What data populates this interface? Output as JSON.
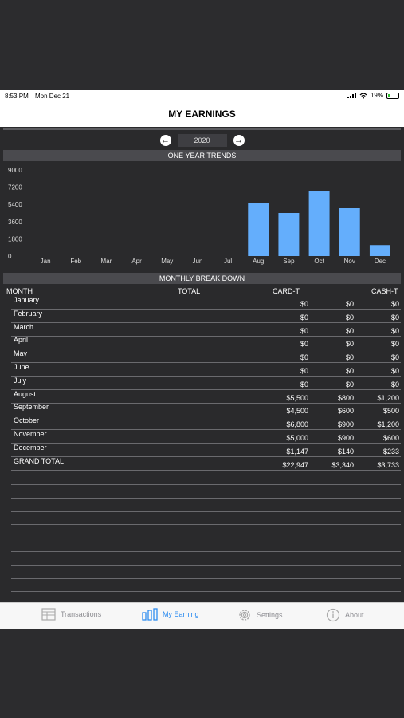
{
  "status": {
    "time": "8:53 PM",
    "date": "Mon Dec 21",
    "battery": "19%"
  },
  "nav": {
    "title": "MY EARNINGS"
  },
  "year_selector": {
    "year": "2020",
    "prev_icon": "arrow-left-circle-icon",
    "next_icon": "arrow-right-circle-icon"
  },
  "trends": {
    "title": "ONE YEAR TRENDS"
  },
  "chart_data": {
    "type": "bar",
    "categories": [
      "Jan",
      "Feb",
      "Mar",
      "Apr",
      "May",
      "Jun",
      "Jul",
      "Aug",
      "Sep",
      "Oct",
      "Nov",
      "Dec"
    ],
    "values": [
      0,
      0,
      0,
      0,
      0,
      0,
      0,
      5500,
      4500,
      6800,
      5000,
      1147
    ],
    "y_ticks": [
      "9000",
      "7200",
      "5400",
      "3600",
      "1800",
      "0"
    ],
    "ylim": [
      0,
      9000
    ],
    "bar_color": "#64aefc",
    "grid": false
  },
  "breakdown": {
    "title": "MONTHLY BREAK DOWN",
    "headers": {
      "month": "MONTH",
      "total": "TOTAL",
      "card": "CARD-T",
      "cash": "CASH-T"
    },
    "rows": [
      {
        "month": "January",
        "total": "$0",
        "card": "$0",
        "cash": "$0"
      },
      {
        "month": "February",
        "total": "$0",
        "card": "$0",
        "cash": "$0"
      },
      {
        "month": "March",
        "total": "$0",
        "card": "$0",
        "cash": "$0"
      },
      {
        "month": "April",
        "total": "$0",
        "card": "$0",
        "cash": "$0"
      },
      {
        "month": "May",
        "total": "$0",
        "card": "$0",
        "cash": "$0"
      },
      {
        "month": "June",
        "total": "$0",
        "card": "$0",
        "cash": "$0"
      },
      {
        "month": "July",
        "total": "$0",
        "card": "$0",
        "cash": "$0"
      },
      {
        "month": "August",
        "total": "$5,500",
        "card": "$800",
        "cash": "$1,200"
      },
      {
        "month": "September",
        "total": "$4,500",
        "card": "$600",
        "cash": "$500"
      },
      {
        "month": "October",
        "total": "$6,800",
        "card": "$900",
        "cash": "$1,200"
      },
      {
        "month": "November",
        "total": "$5,000",
        "card": "$900",
        "cash": "$600"
      },
      {
        "month": "December",
        "total": "$1,147",
        "card": "$140",
        "cash": "$233"
      },
      {
        "month": "GRAND TOTAL",
        "total": "$22,947",
        "card": "$3,340",
        "cash": "$3,733"
      }
    ]
  },
  "tabs": [
    {
      "label": "Transactions",
      "icon": "transactions-icon",
      "active": false
    },
    {
      "label": "My Earning",
      "icon": "bar-chart-icon",
      "active": true
    },
    {
      "label": "Settings",
      "icon": "gear-icon",
      "active": false
    },
    {
      "label": "About",
      "icon": "info-icon",
      "active": false
    }
  ],
  "colors": {
    "accent": "#2d8cf0",
    "background": "#2a2a2c",
    "bar": "#64aefc"
  }
}
